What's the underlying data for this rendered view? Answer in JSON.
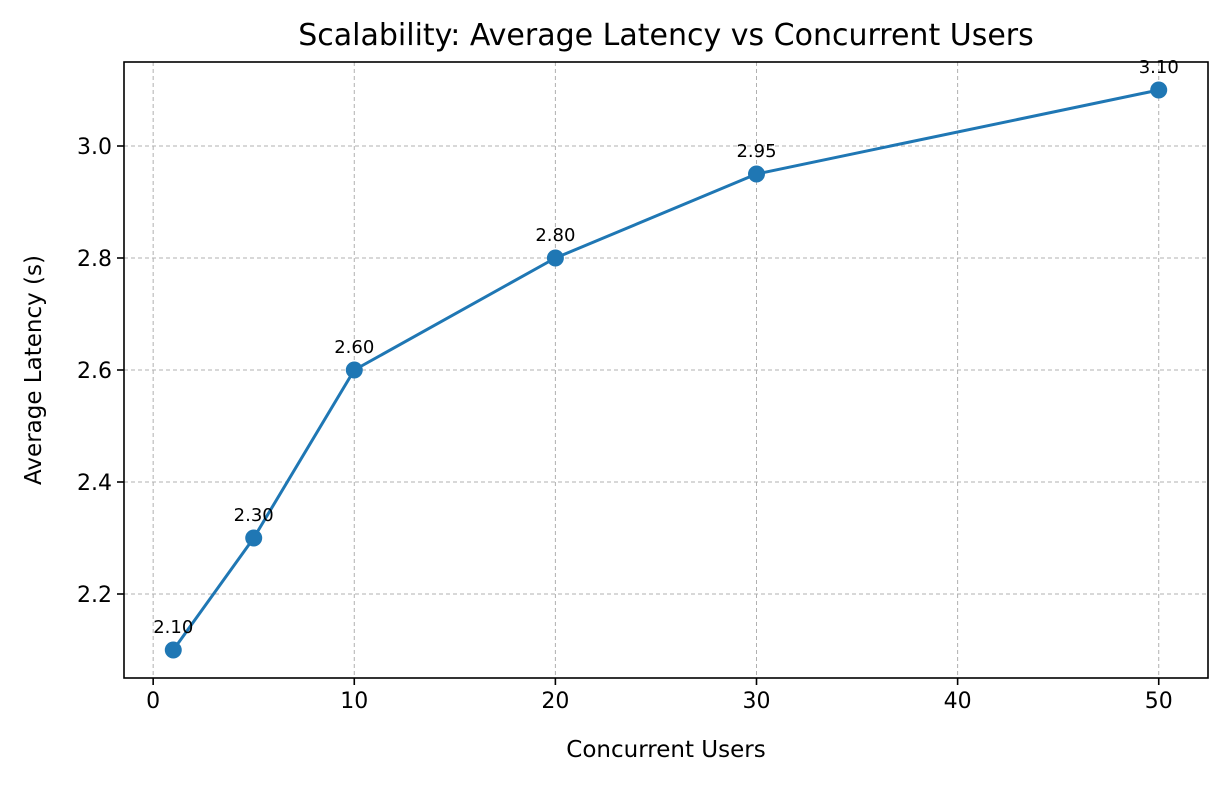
{
  "chart_data": {
    "type": "line",
    "title": "Scalability: Average Latency vs Concurrent Users",
    "xlabel": "Concurrent Users",
    "ylabel": "Average Latency (s)",
    "xlim": [
      -1.45,
      52.45
    ],
    "ylim": [
      2.05,
      3.15
    ],
    "xticks": [
      0,
      10,
      20,
      30,
      40,
      50
    ],
    "yticks": [
      2.2,
      2.4,
      2.6,
      2.8,
      3.0
    ],
    "grid": true,
    "series": [
      {
        "color": "#1f77b4",
        "marker": "circle",
        "x": [
          1,
          5,
          10,
          20,
          30,
          50
        ],
        "y": [
          2.1,
          2.3,
          2.6,
          2.8,
          2.95,
          3.1
        ],
        "labels": [
          "2.10",
          "2.30",
          "2.60",
          "2.80",
          "2.95",
          "3.10"
        ]
      }
    ]
  }
}
